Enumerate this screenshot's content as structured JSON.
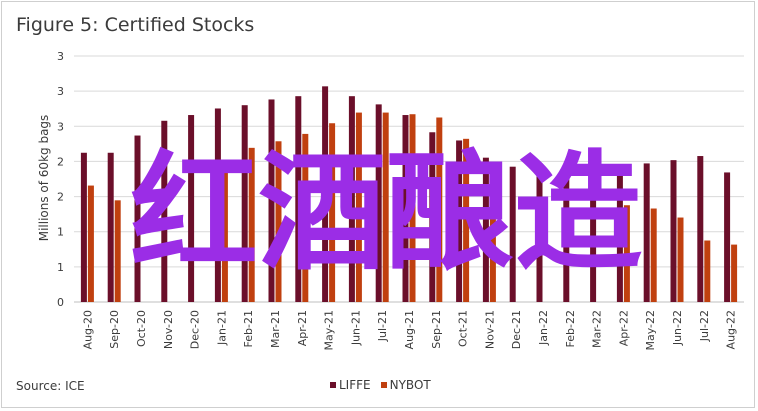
{
  "figure_title": "Figure 5: Certified Stocks",
  "source": "Source: ICE",
  "watermark": "红酒酿造",
  "colors": {
    "LIFFE": "#6b0f2a",
    "NYBOT": "#c0400f",
    "watermark": "#9b2de6",
    "grid": "#d9d9d9"
  },
  "chart_data": {
    "type": "bar",
    "title": "Figure 5: Certified Stocks",
    "xlabel": "",
    "ylabel": "Millions of 60kg bags",
    "ytick_labels": [
      "0",
      "1",
      "1",
      "2",
      "2",
      "3",
      "3",
      "3"
    ],
    "ylim": [
      0,
      3.0
    ],
    "grid": true,
    "legend_position": "bottom-center",
    "categories": [
      "Aug-20",
      "Sep-20",
      "Oct-20",
      "Nov-20",
      "Dec-20",
      "Jan-21",
      "Feb-21",
      "Mar-21",
      "Apr-21",
      "May-21",
      "Jun-21",
      "Jul-21",
      "Aug-21",
      "Sep-21",
      "Oct-21",
      "Nov-21",
      "Dec-21",
      "Jan-22",
      "Feb-22",
      "Mar-22",
      "Apr-22",
      "May-22",
      "Jun-22",
      "Jul-22",
      "Aug-22"
    ],
    "series": [
      {
        "name": "LIFFE",
        "values": [
          1.82,
          1.82,
          2.03,
          2.21,
          2.28,
          2.36,
          2.4,
          2.47,
          2.51,
          2.63,
          2.51,
          2.41,
          2.28,
          2.07,
          1.97,
          1.76,
          1.65,
          1.57,
          1.52,
          1.55,
          1.56,
          1.69,
          1.73,
          1.78,
          1.58
        ]
      },
      {
        "name": "NYBOT",
        "values": [
          1.42,
          1.24,
          0.0,
          0.0,
          0.0,
          1.72,
          1.88,
          1.96,
          2.05,
          2.18,
          2.31,
          2.31,
          2.29,
          2.25,
          1.99,
          1.7,
          0.0,
          0.0,
          0.0,
          0.0,
          1.18,
          1.14,
          1.03,
          0.75,
          0.7
        ]
      }
    ]
  }
}
